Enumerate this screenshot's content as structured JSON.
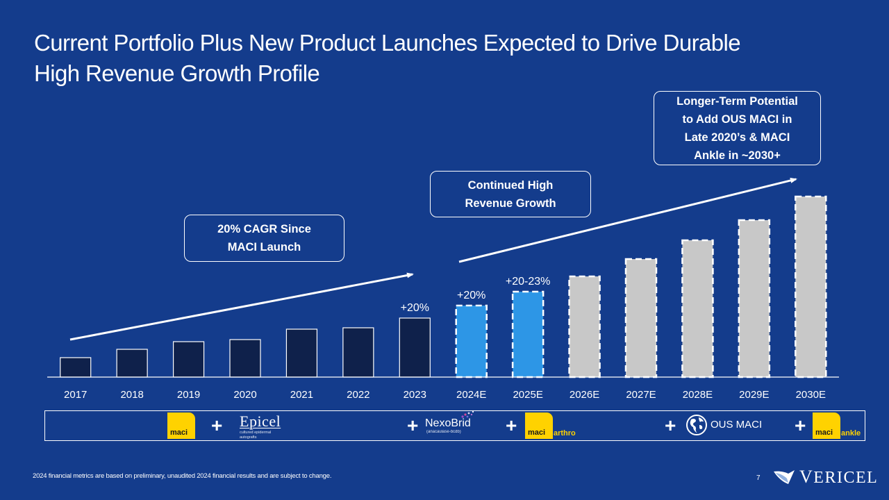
{
  "slide": {
    "title_line1": "Current Portfolio Plus New Product Launches Expected to Drive Durable",
    "title_line2": "High Revenue Growth Profile",
    "page_number": "7",
    "footnote": "2024 financial metrics are based on preliminary, unaudited 2024 financial results and are subject to change.",
    "brand": "Vericel",
    "brand_display": {
      "first": "V",
      "rest": "ERICEL"
    },
    "colors": {
      "background": "#143c8c",
      "historical_bar": "#0f214b",
      "near_term_estimate_bar": "#2d96e6",
      "long_term_estimate_bar": "#c8c8c8",
      "maci_yellow": "#ffd200",
      "text": "#ffffff"
    }
  },
  "callouts": {
    "cagr": {
      "line1": "20% CAGR Since",
      "line2": "MACI Launch"
    },
    "continued_growth": {
      "line1": "Continued High",
      "line2": "Revenue Growth"
    },
    "long_term": {
      "line1": "Longer-Term Potential",
      "line2": "to Add OUS MACI in",
      "line3": "Late 2020’s & MACI",
      "line4": "Ankle in ~2030+"
    }
  },
  "products": {
    "maci": {
      "word": "maci",
      "icon": "maci-logo"
    },
    "epicel": {
      "word": "Epicel",
      "sub": "cultured epidermal autografts",
      "icon": "epicel-logo"
    },
    "nexobrid": {
      "word": "NexoBrid",
      "sub": "(anacaulase-bcdb)",
      "icon": "nexobrid-logo"
    },
    "maci_arthro": {
      "word": "maci",
      "suffix": "arthro",
      "icon": "maci-arthro-logo"
    },
    "ous_maci": {
      "label": "OUS MACI",
      "icon": "globe-icon"
    },
    "maci_ankle": {
      "word": "maci",
      "suffix": "ankle",
      "icon": "maci-ankle-logo"
    },
    "plus_symbol": "+"
  },
  "chart_data": {
    "type": "bar",
    "title": "",
    "xlabel": "",
    "ylabel": "",
    "y_axis_shown": false,
    "value_units": "relative (no y-axis shown; estimated from bar heights)",
    "ylim": [
      0,
      270
    ],
    "grid": false,
    "categories": [
      "2017",
      "2018",
      "2019",
      "2020",
      "2021",
      "2022",
      "2023",
      "2024E",
      "2025E",
      "2026E",
      "2027E",
      "2028E",
      "2029E",
      "2030E"
    ],
    "values": [
      28,
      40,
      51,
      54,
      69,
      71,
      85,
      103,
      123,
      145,
      170,
      197,
      226,
      260
    ],
    "bar_groups": [
      "historical",
      "historical",
      "historical",
      "historical",
      "historical",
      "historical",
      "historical",
      "near_term_estimate",
      "near_term_estimate",
      "long_term_estimate",
      "long_term_estimate",
      "long_term_estimate",
      "long_term_estimate",
      "long_term_estimate"
    ],
    "dashed_outline": [
      false,
      false,
      false,
      false,
      false,
      false,
      false,
      true,
      true,
      true,
      true,
      true,
      true,
      true
    ],
    "data_labels": [
      "",
      "",
      "",
      "",
      "",
      "",
      "+20%",
      "+20%",
      "+20-23%",
      "",
      "",
      "",
      "",
      ""
    ],
    "trend_arrows": [
      {
        "from_category": "2017",
        "to_category": "2023",
        "label": "20% CAGR Since MACI Launch"
      },
      {
        "from_category": "2024E",
        "to_category": "2030E",
        "label": "Continued High Revenue Growth"
      }
    ],
    "legend": "none"
  }
}
